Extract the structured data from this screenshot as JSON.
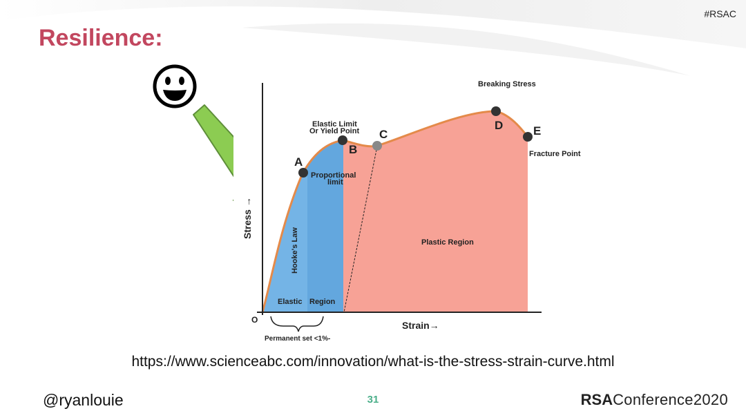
{
  "slide": {
    "hashtag": "#RSAC",
    "title": "Resilience:",
    "url": "https://www.scienceabc.com/innovation/what-is-the-stress-strain-curve.html",
    "handle": "@ryanlouie",
    "page_number": "31",
    "logo": {
      "bold": "RSA",
      "rest": "Conference2020"
    }
  },
  "diagram": {
    "labels": {
      "breaking_stress": "Breaking Stress",
      "elastic_limit_1": "Elastic Limit",
      "elastic_limit_2": "Or Yield Point",
      "proportional_1": "Proportional",
      "proportional_2": "limit",
      "fracture_point": "Fracture Point",
      "plastic_region": "Plastic Region",
      "hookes_law": "Hooke's Law",
      "elastic": "Elastic",
      "region": "Region",
      "stress_axis": "Stress →",
      "strain_axis": "Strain→",
      "origin": "O",
      "permanent_set": "Permanent set <1%-"
    },
    "points": [
      "A",
      "B",
      "C",
      "D",
      "E"
    ],
    "colors": {
      "elastic_fill": "#74b4e6",
      "elastic_dark": "#63a7de",
      "plastic_fill": "#f7a296",
      "curve": "#e48a4a",
      "arrow_fill": "#8ccc52",
      "arrow_stroke": "#5e8e3a",
      "title": "#c2475f"
    },
    "icons": [
      "smiley-face-icon",
      "down-arrow-icon"
    ]
  }
}
